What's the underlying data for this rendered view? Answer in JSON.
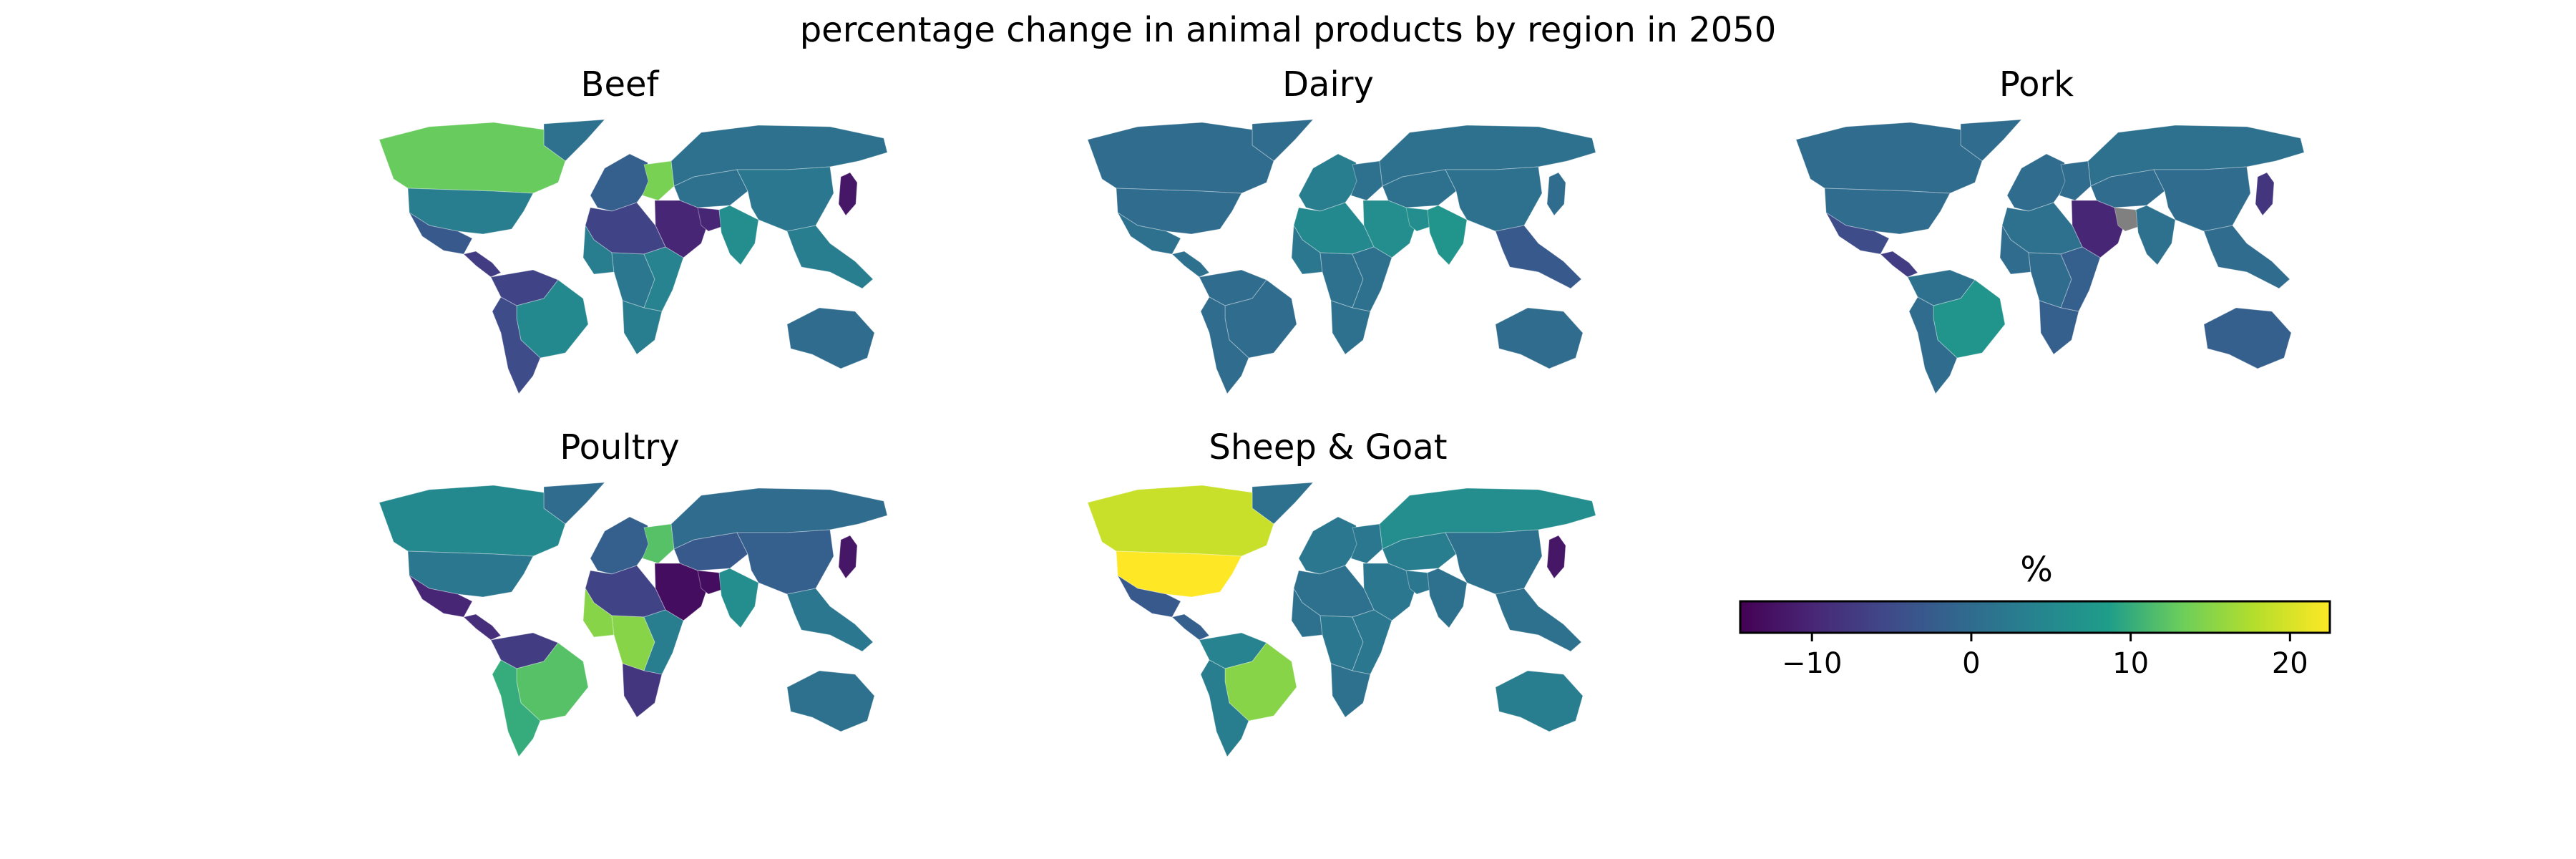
{
  "title": "percentage change in animal products by region in 2050",
  "colormap": {
    "name": "viridis",
    "stops": [
      "#440154",
      "#482777",
      "#3f4a8a",
      "#31688e",
      "#26838f",
      "#1f9d8a",
      "#6cce5a",
      "#b6de2b",
      "#fee825"
    ],
    "no_data_color": "#808080"
  },
  "chart_data": {
    "type": "choropleth-map",
    "title": "percentage change in animal products by region in 2050",
    "value_range": [
      -14.5,
      22.5
    ],
    "colorbar": {
      "label": "%",
      "ticks": [
        -10,
        0,
        10,
        20
      ],
      "tick_labels": [
        "−10",
        "0",
        "10",
        "20"
      ]
    },
    "panels": [
      {
        "key": "beef",
        "title": "Beef",
        "regions": {
          "canada": 13,
          "usa": 3,
          "mexico": -3,
          "central_america": -7,
          "south_america_north": -6,
          "brazil": 5,
          "southern_cone": -5,
          "greenland": 1,
          "western_europe": -2,
          "eastern_europe": 14,
          "russia": 1,
          "central_asia": 1,
          "north_africa": -6,
          "west_africa": 3,
          "central_africa": 2,
          "east_africa": 4,
          "southern_africa": 3,
          "middle_east": -10,
          "south_asia": 6,
          "china": 2,
          "japan": -12,
          "southeast_asia": 3,
          "australia": 0
        }
      },
      {
        "key": "dairy",
        "title": "Dairy",
        "regions": {
          "canada": 0,
          "usa": 0,
          "mexico": 1,
          "central_america": 1,
          "south_america_north": 0,
          "brazil": 0,
          "southern_cone": 0,
          "greenland": 0,
          "western_europe": 3,
          "eastern_europe": 1,
          "russia": 1,
          "central_asia": 1,
          "north_africa": 5,
          "west_africa": 2,
          "central_africa": 1,
          "east_africa": 1,
          "southern_africa": 1,
          "middle_east": 6,
          "south_asia": 7,
          "china": 1,
          "japan": 0,
          "southeast_asia": -3,
          "australia": 0
        }
      },
      {
        "key": "pork",
        "title": "Pork",
        "regions": {
          "canada": 0,
          "usa": 0,
          "mexico": -5,
          "central_america": -7,
          "south_america_north": 1,
          "brazil": 7,
          "southern_cone": 0,
          "greenland": 0,
          "western_europe": 0,
          "eastern_europe": 0,
          "russia": 1,
          "central_asia": 0,
          "north_africa": 1,
          "west_africa": 0,
          "central_africa": 0,
          "east_africa": -2,
          "southern_africa": -2,
          "middle_east": -10,
          "south_asia": 1,
          "china": 0,
          "japan": -8,
          "southeast_asia": 0,
          "australia": -2,
          "iran": null
        }
      },
      {
        "key": "poultry",
        "title": "Poultry",
        "regions": {
          "canada": 5,
          "usa": 2,
          "mexico": -10,
          "central_america": -9,
          "south_america_north": -7,
          "brazil": 12,
          "southern_cone": 10,
          "greenland": 0,
          "western_europe": -2,
          "eastern_europe": 12,
          "russia": 0,
          "central_asia": -3,
          "north_africa": -6,
          "west_africa": 15,
          "central_africa": 15,
          "east_africa": 3,
          "southern_africa": -8,
          "middle_east": -13,
          "south_asia": 6,
          "china": -2,
          "japan": -12,
          "southeast_asia": 2,
          "australia": 1
        }
      },
      {
        "key": "sheep_goat",
        "title": "Sheep & Goat",
        "regions": {
          "canada": 19,
          "usa": 22.5,
          "mexico": -3,
          "central_america": -2,
          "south_america_north": 4,
          "brazil": 15,
          "southern_cone": 3,
          "greenland": 1,
          "western_europe": 2,
          "eastern_europe": 2,
          "russia": 6,
          "central_asia": 3,
          "north_africa": 1,
          "west_africa": 1,
          "central_africa": 2,
          "east_africa": 2,
          "southern_africa": 1,
          "middle_east": 2,
          "south_asia": 1,
          "china": 1,
          "japan": -12,
          "southeast_asia": 1,
          "australia": 3
        }
      }
    ]
  }
}
